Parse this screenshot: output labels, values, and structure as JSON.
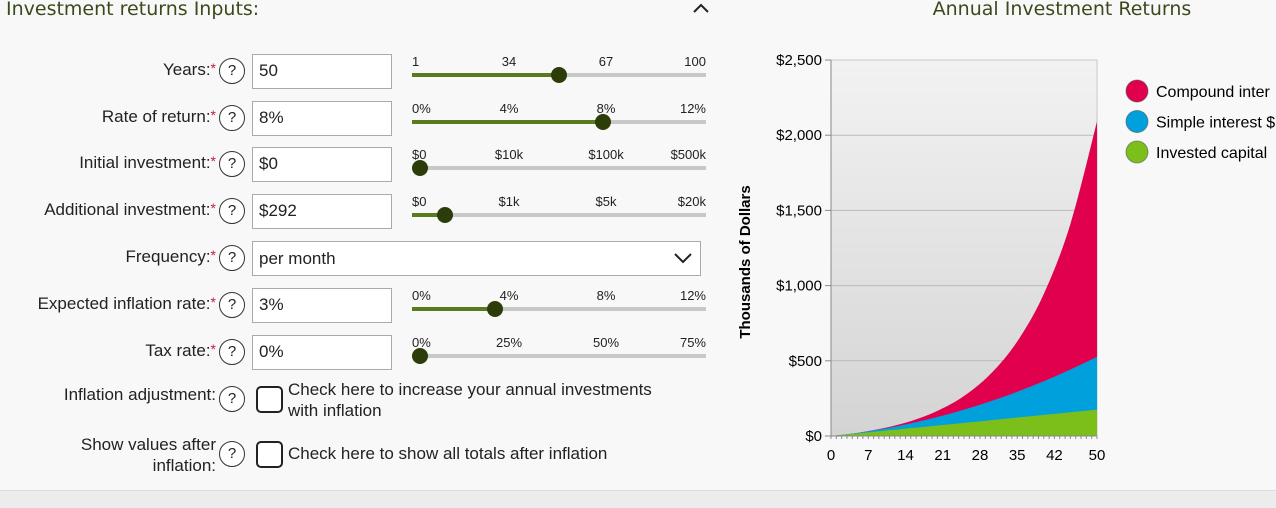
{
  "form": {
    "title": "Investment returns Inputs:",
    "rows": [
      {
        "label": "Years:",
        "value": "50",
        "ticks": [
          "1",
          "34",
          "67",
          "100"
        ],
        "slider": 0.5
      },
      {
        "label": "Rate of return:",
        "value": "8%",
        "ticks": [
          "0%",
          "4%",
          "8%",
          "12%"
        ],
        "slider": 0.66
      },
      {
        "label": "Initial investment:",
        "value": "$0",
        "ticks": [
          "$0",
          "$10k",
          "$100k",
          "$500k"
        ],
        "slider": 0
      },
      {
        "label": "Additional investment:",
        "value": "$292",
        "ticks": [
          "$0",
          "$1k",
          "$5k",
          "$20k"
        ],
        "slider": 0.09
      },
      {
        "label": "Frequency:",
        "value": "per month"
      },
      {
        "label": "Expected inflation rate:",
        "value": "3%",
        "ticks": [
          "0%",
          "4%",
          "8%",
          "12%"
        ],
        "slider": 0.27
      },
      {
        "label": "Tax rate:",
        "value": "0%",
        "ticks": [
          "0%",
          "25%",
          "50%",
          "75%"
        ],
        "slider": 0
      }
    ],
    "required_mark": "*",
    "help": "?",
    "inflation_adjustment": {
      "label": "Inflation adjustment:",
      "text_line1": "Check here to increase your annual investments",
      "text_line2": "with inflation",
      "checked": false
    },
    "after_inflation": {
      "label_line1": "Show values after",
      "label_line2": "inflation:",
      "text": "Check here to show all totals after inflation",
      "checked": false
    }
  },
  "colors": {
    "accent": "#5a7a1e",
    "thumb": "#2d3d0a",
    "compound": "#e0004d",
    "simple": "#00a0dc",
    "invested": "#7dbf1a"
  },
  "chart_data": {
    "type": "area",
    "stacked": true,
    "title": "Annual Investment Returns",
    "ylabel": "Thousands of Dollars",
    "xlabel": "",
    "x": [
      0,
      5,
      10,
      15,
      20,
      25,
      30,
      35,
      40,
      45,
      50
    ],
    "xticks": [
      "0",
      "7",
      "14",
      "21",
      "28",
      "35",
      "42",
      "50"
    ],
    "xtick_values": [
      0,
      7,
      14,
      21,
      28,
      35,
      42,
      50
    ],
    "yticks": [
      "$0",
      "$500",
      "$1,000",
      "$1,500",
      "$2,000",
      "$2,500"
    ],
    "ytick_values": [
      0,
      500,
      1000,
      1500,
      2000,
      2500
    ],
    "xlim": [
      0,
      50
    ],
    "ylim": [
      0,
      2500
    ],
    "grid": true,
    "legend": "right",
    "series": [
      {
        "name": "Compound inter",
        "total": [
          0,
          21,
          53,
          99,
          167,
          266,
          413,
          628,
          944,
          1409,
          2091
        ]
      },
      {
        "name": "Simple interest $",
        "total": [
          0,
          21,
          49,
          84,
          126,
          175,
          231,
          294,
          364,
          442,
          526
        ]
      },
      {
        "name": "Invested capital",
        "total": [
          0,
          17.5,
          35,
          52.6,
          70.1,
          87.6,
          105.1,
          122.6,
          140.2,
          157.7,
          175.2
        ]
      }
    ]
  }
}
